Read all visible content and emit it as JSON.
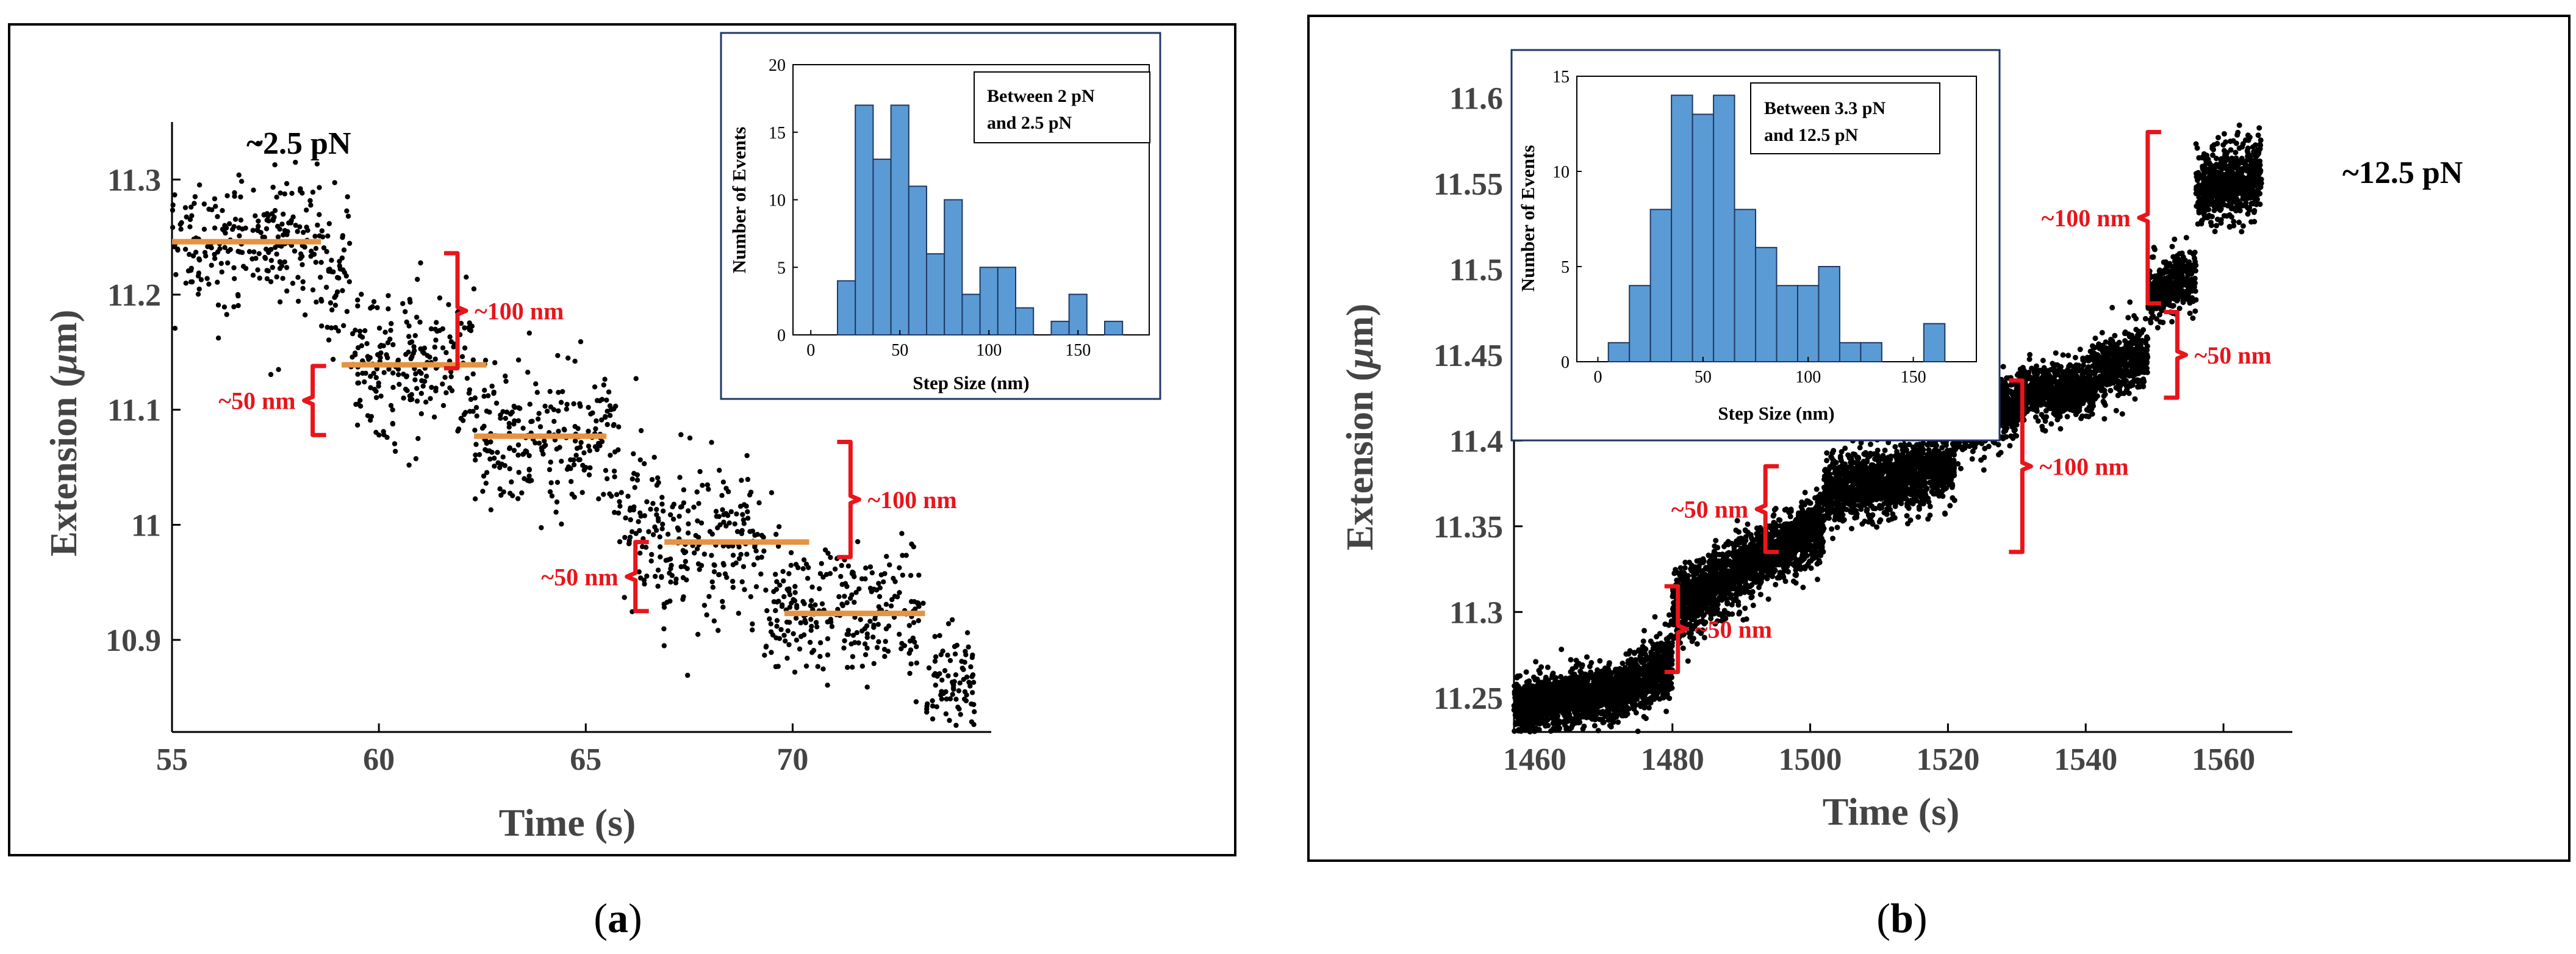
{
  "colors": {
    "scatter": "#000000",
    "step": "#e59343",
    "bracket": "#e8151b",
    "hist": "#5b9bd5",
    "hist_edge": "#1f3864",
    "frame": "#000000"
  },
  "panels": {
    "a": {
      "caption_open": "(",
      "caption_letter": "a",
      "caption_close": ")"
    },
    "b": {
      "caption_open": "(",
      "caption_letter": "b",
      "caption_close": ")"
    }
  },
  "chart_data": [
    {
      "id": "a",
      "type": "scatter",
      "title": "",
      "force_label": "~2.5 pN",
      "xlabel": "Time (s)",
      "ylabel": "Extension (μm)",
      "ylabel_main": "Extension (",
      "ylabel_mu": "μ",
      "ylabel_rest": "m)",
      "xlim": [
        55,
        74.8
      ],
      "ylim": [
        10.82,
        11.35
      ],
      "xticks": [
        55,
        60,
        65,
        70
      ],
      "yticks": [
        10.9,
        11,
        11.1,
        11.2,
        11.3
      ],
      "yticklabels": [
        "10.9",
        "11",
        "11.1",
        "11.2",
        "11.3"
      ],
      "segments": [
        {
          "t0": 55.0,
          "t1": 58.6,
          "mean": 11.248,
          "sd": 0.028,
          "n": 240
        },
        {
          "t0": 58.6,
          "t1": 59.3,
          "mean": 11.225,
          "sd": 0.035,
          "n": 50
        },
        {
          "t0": 59.3,
          "t1": 62.3,
          "mean": 11.138,
          "sd": 0.032,
          "n": 220
        },
        {
          "t0": 62.3,
          "t1": 65.8,
          "mean": 11.078,
          "sd": 0.032,
          "n": 240
        },
        {
          "t0": 65.8,
          "t1": 66.5,
          "mean": 11.0,
          "sd": 0.04,
          "n": 45
        },
        {
          "t0": 66.5,
          "t1": 69.3,
          "mean": 10.985,
          "sd": 0.03,
          "n": 200
        },
        {
          "t0": 69.3,
          "t1": 73.2,
          "mean": 10.925,
          "sd": 0.03,
          "n": 260
        },
        {
          "t0": 73.2,
          "t1": 74.4,
          "mean": 10.86,
          "sd": 0.025,
          "n": 90
        }
      ],
      "steps": [
        {
          "t0": 55.0,
          "t1": 58.6,
          "y": 11.246
        },
        {
          "t0": 59.1,
          "t1": 62.6,
          "y": 11.139
        },
        {
          "t0": 62.3,
          "t1": 65.5,
          "y": 11.077
        },
        {
          "t0": 66.9,
          "t1": 70.4,
          "y": 10.985
        },
        {
          "t0": 69.8,
          "t1": 73.2,
          "y": 10.923
        }
      ],
      "brackets": [
        {
          "label": "~100 nm",
          "x": 61.9,
          "y0": 11.136,
          "y1": 11.236,
          "dir": "right",
          "text_side": "right"
        },
        {
          "label": "~50 nm",
          "x": 58.4,
          "y0": 11.078,
          "y1": 11.138,
          "dir": "left",
          "text_side": "left"
        },
        {
          "label": "~100 nm",
          "x": 71.4,
          "y0": 10.972,
          "y1": 11.072,
          "dir": "right",
          "text_side": "right"
        },
        {
          "label": "~50 nm",
          "x": 66.2,
          "y0": 10.925,
          "y1": 10.985,
          "dir": "left",
          "text_side": "left"
        }
      ],
      "inset": {
        "type": "bar",
        "legend": [
          "Between 2 pN",
          "and 2.5 pN"
        ],
        "xlabel": "Step Size (nm)",
        "ylabel": "Number of Events",
        "xlim": [
          -10,
          190
        ],
        "ylim": [
          0,
          20
        ],
        "xticks": [
          0,
          50,
          100,
          150
        ],
        "yticks": [
          0,
          5,
          10,
          15,
          20
        ],
        "bin_width": 10,
        "bins": [
          20,
          30,
          40,
          50,
          60,
          70,
          80,
          90,
          100,
          110,
          120,
          130,
          140,
          150,
          160,
          170
        ],
        "values": [
          4,
          17,
          13,
          17,
          11,
          6,
          10,
          3,
          5,
          5,
          2,
          0,
          1,
          3,
          0,
          1
        ]
      }
    },
    {
      "id": "b",
      "type": "scatter",
      "title": "",
      "force_label": "~12.5 pN",
      "xlabel": "Time (s)",
      "ylabel": "Extension (μm)",
      "ylabel_main": "Extension (",
      "ylabel_mu": "μ",
      "ylabel_rest": "m)",
      "xlim": [
        1457,
        1570
      ],
      "ylim": [
        11.23,
        11.625
      ],
      "xticks": [
        1460,
        1480,
        1500,
        1520,
        1540,
        1560
      ],
      "yticks": [
        11.25,
        11.3,
        11.35,
        11.4,
        11.45,
        11.5,
        11.55,
        11.6
      ],
      "yticklabels": [
        "11.25",
        "11.3",
        "11.35",
        "11.4",
        "11.45",
        "11.5",
        "11.55",
        "11.6"
      ],
      "segments": [
        {
          "t0": 1457.0,
          "t1": 1473.0,
          "y0": 11.243,
          "y1": 11.255,
          "sd": 0.008,
          "n": 1300
        },
        {
          "t0": 1473.0,
          "t1": 1480.0,
          "y0": 11.255,
          "y1": 11.27,
          "sd": 0.009,
          "n": 600
        },
        {
          "t0": 1480.0,
          "t1": 1492.0,
          "y0": 11.3,
          "y1": 11.33,
          "sd": 0.01,
          "n": 1000
        },
        {
          "t0": 1492.0,
          "t1": 1502.0,
          "y0": 11.33,
          "y1": 11.35,
          "sd": 0.009,
          "n": 800
        },
        {
          "t0": 1502.0,
          "t1": 1521.0,
          "y0": 11.37,
          "y1": 11.385,
          "sd": 0.009,
          "n": 1400
        },
        {
          "t0": 1521.0,
          "t1": 1530.0,
          "y0": 11.41,
          "y1": 11.42,
          "sd": 0.009,
          "n": 600
        },
        {
          "t0": 1530.0,
          "t1": 1541.0,
          "y0": 11.428,
          "y1": 11.43,
          "sd": 0.008,
          "n": 700
        },
        {
          "t0": 1541.0,
          "t1": 1549.0,
          "y0": 11.44,
          "y1": 11.45,
          "sd": 0.009,
          "n": 500
        },
        {
          "t0": 1549.0,
          "t1": 1556.0,
          "y0": 11.485,
          "y1": 11.495,
          "sd": 0.008,
          "n": 400
        },
        {
          "t0": 1556.0,
          "t1": 1565.5,
          "y0": 11.545,
          "y1": 11.555,
          "sd": 0.01,
          "n": 650
        }
      ],
      "brackets": [
        {
          "label": "~50 nm",
          "x": 1480.8,
          "y0": 11.265,
          "y1": 11.315,
          "dir": "right",
          "text_side": "right"
        },
        {
          "label": "~50 nm",
          "x": 1493.5,
          "y0": 11.335,
          "y1": 11.385,
          "dir": "left",
          "text_side": "left"
        },
        {
          "label": "~100 nm",
          "x": 1530.8,
          "y0": 11.335,
          "y1": 11.435,
          "dir": "right",
          "text_side": "right"
        },
        {
          "label": "~100 nm",
          "x": 1549.0,
          "y0": 11.48,
          "y1": 11.58,
          "dir": "left",
          "text_side": "left"
        },
        {
          "label": "~50 nm",
          "x": 1553.3,
          "y0": 11.425,
          "y1": 11.475,
          "dir": "right",
          "text_side": "right"
        }
      ],
      "inset": {
        "type": "bar",
        "legend": [
          "Between 3.3 pN",
          "and 12.5 pN"
        ],
        "xlabel": "Step Size (nm)",
        "ylabel": "Number of Events",
        "xlim": [
          -10,
          180
        ],
        "ylim": [
          0,
          15
        ],
        "xticks": [
          0,
          50,
          100,
          150
        ],
        "yticks": [
          0,
          5,
          10,
          15
        ],
        "bin_width": 10,
        "bins": [
          10,
          20,
          30,
          40,
          50,
          60,
          70,
          80,
          90,
          100,
          110,
          120,
          130,
          140,
          150,
          160
        ],
        "values": [
          1,
          4,
          8,
          14,
          13,
          14,
          8,
          6,
          4,
          4,
          5,
          1,
          1,
          0,
          0,
          2
        ]
      }
    }
  ]
}
